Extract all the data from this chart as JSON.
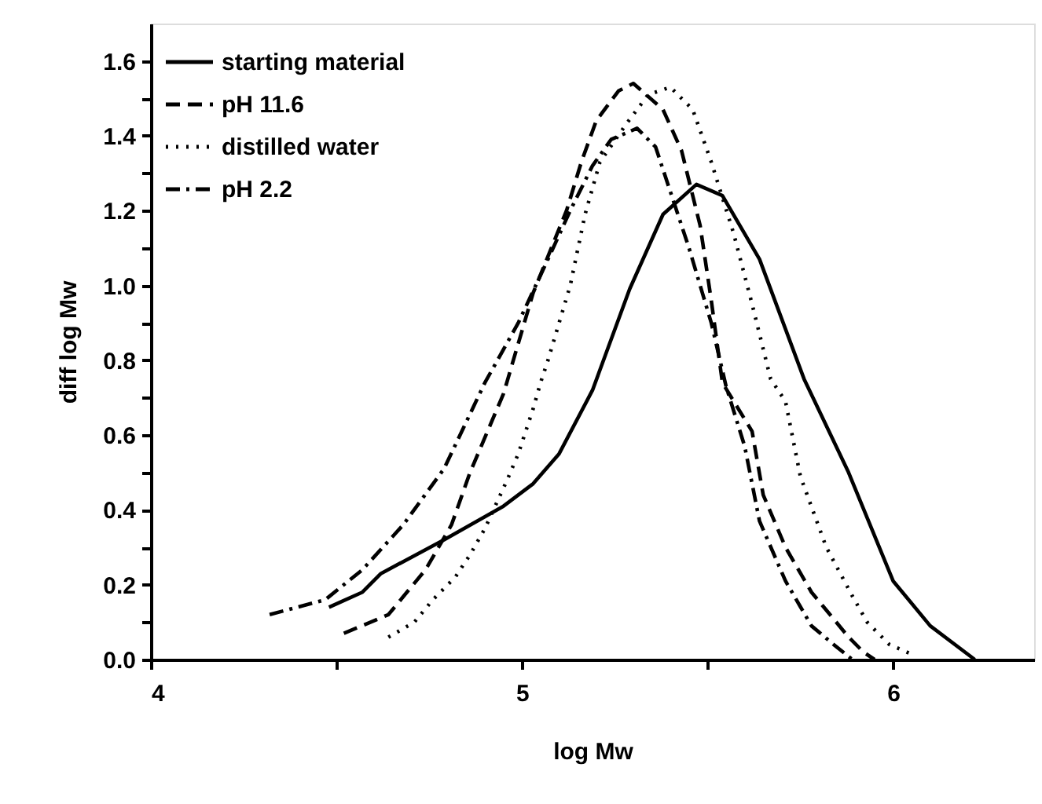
{
  "chart_data": {
    "type": "line",
    "xlabel": "log Mw",
    "ylabel": "diff log Mw",
    "xlim": [
      4,
      6.38
    ],
    "ylim": [
      0,
      1.7
    ],
    "xticks": [
      4,
      {
        "value": 4.5,
        "label": null
      },
      5,
      {
        "value": 5.5,
        "label": null
      },
      6
    ],
    "yticks": [
      {
        "value": 0,
        "label": "0.0"
      },
      {
        "value": 0.1,
        "label": null
      },
      {
        "value": 0.2,
        "label": "0.2"
      },
      {
        "value": 0.3,
        "label": null
      },
      {
        "value": 0.4,
        "label": "0.4"
      },
      {
        "value": 0.5,
        "label": null
      },
      {
        "value": 0.6,
        "label": "0.6"
      },
      {
        "value": 0.7,
        "label": null
      },
      {
        "value": 0.8,
        "label": "0.8"
      },
      {
        "value": 0.9,
        "label": null
      },
      {
        "value": 1.0,
        "label": "1.0"
      },
      {
        "value": 1.1,
        "label": null
      },
      {
        "value": 1.2,
        "label": "1.2"
      },
      {
        "value": 1.3,
        "label": null
      },
      {
        "value": 1.4,
        "label": "1.4"
      },
      {
        "value": 1.5,
        "label": null
      },
      {
        "value": 1.6,
        "label": "1.6"
      }
    ],
    "grid": false,
    "legend": "top left",
    "marker": "none",
    "series": [
      {
        "name": "starting material",
        "color": "#000000",
        "line_style": "solid",
        "x": [
          4.48,
          4.57,
          4.62,
          4.79,
          4.95,
          5.03,
          5.1,
          5.19,
          5.29,
          5.38,
          5.47,
          5.54,
          5.64,
          5.76,
          5.88,
          6.0,
          6.1,
          6.22
        ],
        "values": [
          0.14,
          0.18,
          0.23,
          0.32,
          0.41,
          0.47,
          0.55,
          0.72,
          0.99,
          1.19,
          1.27,
          1.24,
          1.07,
          0.75,
          0.5,
          0.21,
          0.09,
          0.0
        ]
      },
      {
        "name": "pH 11.6",
        "color": "#000000",
        "line_style": "dashed",
        "x": [
          4.52,
          4.64,
          4.74,
          4.81,
          4.86,
          4.95,
          5.03,
          5.12,
          5.16,
          5.2,
          5.26,
          5.3,
          5.38,
          5.43,
          5.48,
          5.51,
          5.54,
          5.62,
          5.65,
          5.71,
          5.78,
          5.88,
          5.92,
          5.95
        ],
        "values": [
          0.07,
          0.12,
          0.24,
          0.36,
          0.5,
          0.71,
          0.98,
          1.2,
          1.33,
          1.44,
          1.52,
          1.54,
          1.47,
          1.36,
          1.16,
          0.96,
          0.74,
          0.61,
          0.44,
          0.3,
          0.18,
          0.06,
          0.02,
          0.0
        ]
      },
      {
        "name": "distilled water",
        "color": "#000000",
        "line_style": "dotted",
        "x": [
          4.64,
          4.71,
          4.76,
          4.82,
          4.86,
          4.9,
          4.96,
          4.99,
          5.03,
          5.05,
          5.07,
          5.13,
          5.17,
          5.21,
          5.28,
          5.34,
          5.4,
          5.46,
          5.51,
          5.57,
          5.62,
          5.67,
          5.71,
          5.75,
          5.82,
          5.89,
          5.93,
          5.99,
          6.06
        ],
        "values": [
          0.06,
          0.1,
          0.16,
          0.22,
          0.28,
          0.35,
          0.48,
          0.55,
          0.67,
          0.74,
          0.8,
          1.0,
          1.19,
          1.33,
          1.43,
          1.51,
          1.53,
          1.47,
          1.33,
          1.14,
          0.95,
          0.75,
          0.69,
          0.49,
          0.3,
          0.17,
          0.1,
          0.04,
          0.01
        ]
      },
      {
        "name": "pH 2.2",
        "color": "#000000",
        "line_style": "dashdot",
        "x": [
          4.32,
          4.47,
          4.57,
          4.68,
          4.79,
          4.9,
          4.99,
          5.07,
          5.13,
          5.19,
          5.24,
          5.31,
          5.36,
          5.4,
          5.45,
          5.51,
          5.55,
          5.6,
          5.64,
          5.71,
          5.78,
          5.84,
          5.89
        ],
        "values": [
          0.12,
          0.16,
          0.24,
          0.36,
          0.51,
          0.74,
          0.9,
          1.07,
          1.2,
          1.32,
          1.39,
          1.42,
          1.37,
          1.25,
          1.1,
          0.9,
          0.73,
          0.57,
          0.37,
          0.21,
          0.09,
          0.04,
          0.0
        ]
      }
    ]
  }
}
